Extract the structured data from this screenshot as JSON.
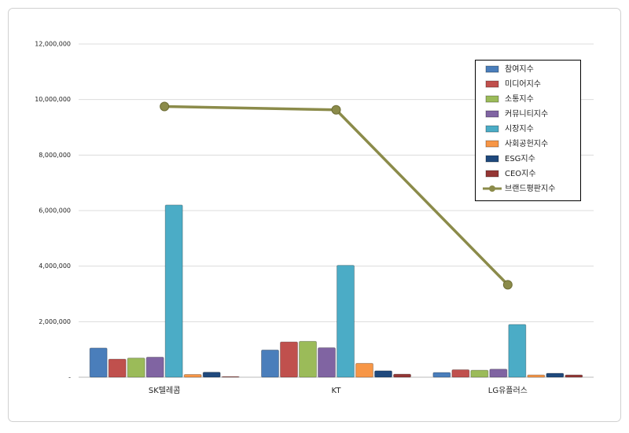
{
  "chart_data": {
    "type": "bar",
    "categories": [
      "SK텔레콤",
      "KT",
      "LG유플러스"
    ],
    "series": [
      {
        "name": "참여지수",
        "color": "#4a7ebb",
        "kind": "bar",
        "values": [
          1050000,
          980000,
          170000
        ]
      },
      {
        "name": "미디어지수",
        "color": "#c0504d",
        "kind": "bar",
        "values": [
          650000,
          1270000,
          270000
        ]
      },
      {
        "name": "소통지수",
        "color": "#9bbb59",
        "kind": "bar",
        "values": [
          690000,
          1290000,
          250000
        ]
      },
      {
        "name": "커뮤니티지수",
        "color": "#8064a2",
        "kind": "bar",
        "values": [
          720000,
          1060000,
          290000
        ]
      },
      {
        "name": "시장지수",
        "color": "#4bacc6",
        "kind": "bar",
        "values": [
          6200000,
          4030000,
          1900000
        ]
      },
      {
        "name": "사회공헌지수",
        "color": "#f79646",
        "kind": "bar",
        "values": [
          100000,
          500000,
          80000
        ]
      },
      {
        "name": "ESG지수",
        "color": "#1f497d",
        "kind": "bar",
        "values": [
          180000,
          230000,
          140000
        ]
      },
      {
        "name": "CEO지수",
        "color": "#943634",
        "kind": "bar",
        "values": [
          20000,
          110000,
          80000
        ]
      },
      {
        "name": "브랜드평판지수",
        "color": "#8b8b4a",
        "kind": "line",
        "values": [
          9750000,
          9630000,
          3330000
        ]
      }
    ],
    "ylim": [
      0,
      12000000
    ],
    "yticks": [
      {
        "value": 0,
        "label": "-"
      },
      {
        "value": 2000000,
        "label": "2,000,000"
      },
      {
        "value": 4000000,
        "label": "4,000,000"
      },
      {
        "value": 6000000,
        "label": "6,000,000"
      },
      {
        "value": 8000000,
        "label": "8,000,000"
      },
      {
        "value": 10000000,
        "label": "10,000,000"
      },
      {
        "value": 12000000,
        "label": "12,000,000"
      }
    ],
    "grid": true,
    "legend": "top-right"
  }
}
